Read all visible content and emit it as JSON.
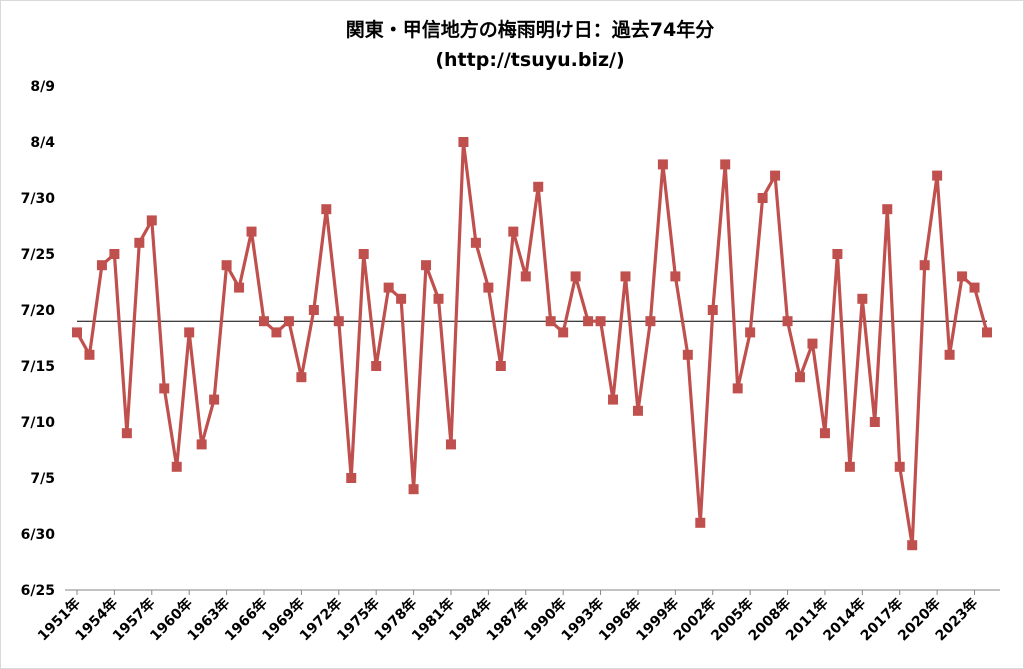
{
  "chart_data": {
    "type": "line",
    "title": "関東・甲信地方の梅雨明け日：過去74年分",
    "subtitle": "(http://tsuyu.biz/)",
    "xlabel": "",
    "ylabel": "",
    "ylim": [
      "6/25",
      "8/9"
    ],
    "y_ticks": [
      "6/25",
      "6/30",
      "7/5",
      "7/10",
      "7/15",
      "7/20",
      "7/25",
      "7/30",
      "8/4",
      "8/9"
    ],
    "x_tick_labels": [
      "1951年",
      "1954年",
      "1957年",
      "1960年",
      "1963年",
      "1966年",
      "1969年",
      "1972年",
      "1975年",
      "1978年",
      "1981年",
      "1984年",
      "1987年",
      "1990年",
      "1993年",
      "1996年",
      "1999年",
      "2002年",
      "2005年",
      "2008年",
      "2011年",
      "2014年",
      "2017年",
      "2020年",
      "2023年"
    ],
    "grid": false,
    "average_line": "7/19",
    "series": [
      {
        "name": "梅雨明け日",
        "color": "#C0504D",
        "marker": "square",
        "years": [
          1951,
          1952,
          1953,
          1954,
          1955,
          1956,
          1957,
          1958,
          1959,
          1960,
          1961,
          1962,
          1963,
          1964,
          1965,
          1966,
          1967,
          1968,
          1969,
          1970,
          1971,
          1972,
          1973,
          1974,
          1975,
          1976,
          1977,
          1978,
          1979,
          1980,
          1981,
          1982,
          1983,
          1984,
          1985,
          1986,
          1987,
          1988,
          1989,
          1990,
          1991,
          1992,
          1993,
          1994,
          1995,
          1996,
          1997,
          1998,
          1999,
          2000,
          2001,
          2002,
          2003,
          2004,
          2005,
          2006,
          2007,
          2008,
          2009,
          2010,
          2011,
          2012,
          2013,
          2014,
          2015,
          2016,
          2017,
          2018,
          2019,
          2020,
          2021,
          2022,
          2023,
          2024
        ],
        "values": [
          "7/18",
          "7/16",
          "7/24",
          "7/25",
          "7/9",
          "7/26",
          "7/28",
          "7/13",
          "7/6",
          "7/18",
          "7/8",
          "7/12",
          "7/24",
          "7/22",
          "7/27",
          "7/19",
          "7/18",
          "7/19",
          "7/14",
          "7/20",
          "7/29",
          "7/19",
          "7/5",
          "7/25",
          "7/15",
          "7/22",
          "7/21",
          "7/4",
          "7/24",
          "7/21",
          "7/8",
          "8/4",
          "7/26",
          "7/22",
          "7/15",
          "7/27",
          "7/23",
          "7/31",
          "7/19",
          "7/18",
          "7/23",
          "7/19",
          "7/19",
          "7/12",
          "7/23",
          "7/11",
          "7/19",
          "8/2",
          "7/23",
          "7/16",
          "7/1",
          "7/20",
          "8/2",
          "7/13",
          "7/18",
          "7/30",
          "8/1",
          "7/19",
          "7/14",
          "7/17",
          "7/9",
          "7/25",
          "7/6",
          "7/21",
          "7/10",
          "7/29",
          "7/6",
          "6/29",
          "7/24",
          "8/1",
          "7/16",
          "7/23",
          "7/22",
          "7/18"
        ]
      }
    ],
    "average_line_color": "#000000"
  }
}
